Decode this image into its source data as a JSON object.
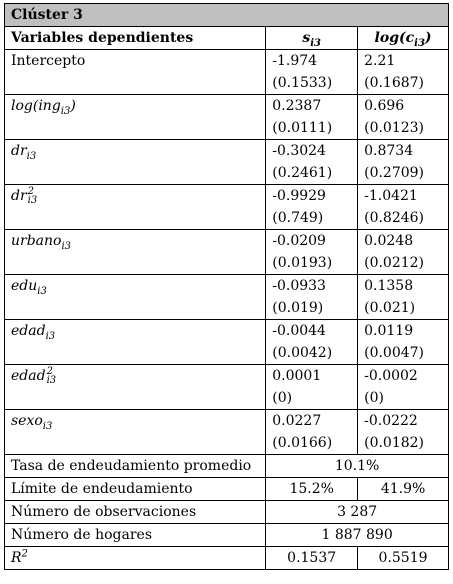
{
  "title": "Clúster 3",
  "header": {
    "dep_label": "Variables dependientes",
    "col1": "s",
    "col1_sub": "i3",
    "col2_pre": "log(",
    "col2_var": "c",
    "col2_sub": "i3",
    "col2_post": ")"
  },
  "rows": [
    {
      "label": "Intercepto",
      "c1": "-1.974",
      "c1_se": "(0.1533)",
      "c2": "2.21",
      "c2_se": "(0.1687)"
    },
    {
      "label_pre": "log(ing",
      "label_sub": "i3",
      "label_post": ")",
      "c1": "0.2387",
      "c1_se": "(0.0111)",
      "c2": "0.696",
      "c2_se": "(0.0123)"
    },
    {
      "label_pre": "dr",
      "label_sub": "i3",
      "c1": "-0.3024",
      "c1_se": "(0.2461)",
      "c2": "0.8734",
      "c2_se": "(0.2709)"
    },
    {
      "label_pre": "dr",
      "label_sub": "i3",
      "label_sup": "2",
      "c1": "-0.9929",
      "c1_se": "(0.749)",
      "c2": "-1.0421",
      "c2_se": "(0.8246)"
    },
    {
      "label_pre": "urbano",
      "label_sub": "i3",
      "c1": "-0.0209",
      "c1_se": "(0.0193)",
      "c2": "0.0248",
      "c2_se": "(0.0212)"
    },
    {
      "label_pre": "edu",
      "label_sub": "i3",
      "c1": "-0.0933",
      "c1_se": "(0.019)",
      "c2": "0.1358",
      "c2_se": "(0.021)"
    },
    {
      "label_pre": "edad",
      "label_sub": "i3",
      "c1": "-0.0044",
      "c1_se": "(0.0042)",
      "c2": "0.0119",
      "c2_se": "(0.0047)"
    },
    {
      "label_pre": "edad",
      "label_sub": "i3",
      "label_sup": "2",
      "c1": "0.0001",
      "c1_se": "(0)",
      "c2": "-0.0002",
      "c2_se": "(0)"
    },
    {
      "label_pre": "sexo",
      "label_sub": "i3",
      "c1": "0.0227",
      "c1_se": "(0.0166)",
      "c2": "-0.0222",
      "c2_se": "(0.0182)"
    }
  ],
  "summary": {
    "tasa_label": "Tasa de endeudamiento promedio",
    "tasa_value": "10.1%",
    "limite_label": "Límite de endeudamiento",
    "limite_c1": "15.2%",
    "limite_c2": "41.9%",
    "obs_label": "Número de observaciones",
    "obs_value": "3 287",
    "hog_label": "Número de hogares",
    "hog_value": "1 887 890",
    "r2_label": "R",
    "r2_sup": "2",
    "r2_c1": "0.1537",
    "r2_c2": "0.5519"
  }
}
